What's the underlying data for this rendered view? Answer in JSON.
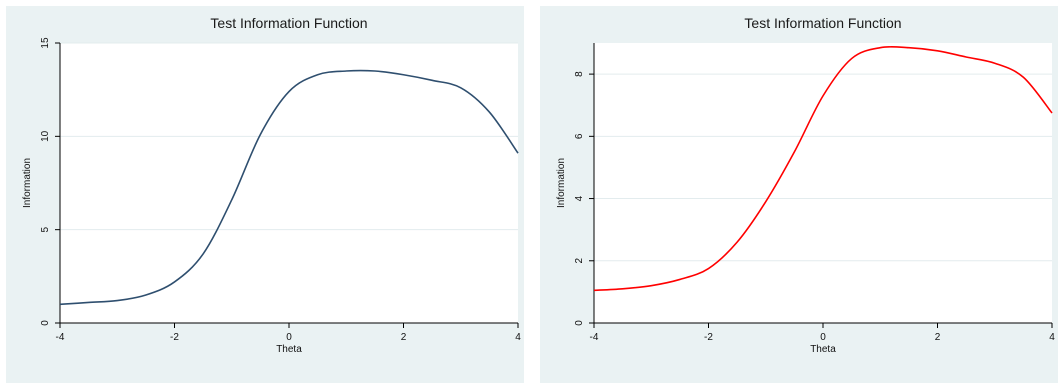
{
  "chart_data": [
    {
      "type": "line",
      "title": "Test Information Function",
      "xlabel": "Theta",
      "ylabel": "Information",
      "xlim": [
        -4,
        4
      ],
      "ylim": [
        0,
        15
      ],
      "xticks": [
        "-4",
        "-2",
        "0",
        "2",
        "4"
      ],
      "yticks": [
        "0",
        "5",
        "10",
        "15"
      ],
      "grid": true,
      "color": "#2f4f6f",
      "series": [
        {
          "x": [
            -4,
            -3.5,
            -3,
            -2.5,
            -2,
            -1.5,
            -1,
            -0.5,
            0,
            0.5,
            1,
            1.5,
            2,
            2.5,
            3,
            3.5,
            4
          ],
          "values": [
            1.0,
            1.1,
            1.2,
            1.5,
            2.2,
            3.7,
            6.6,
            10.1,
            12.4,
            13.3,
            13.5,
            13.5,
            13.3,
            13.0,
            12.6,
            11.3,
            9.1
          ]
        }
      ]
    },
    {
      "type": "line",
      "title": "Test Information Function",
      "xlabel": "Theta",
      "ylabel": "Information",
      "xlim": [
        -4,
        4
      ],
      "ylim": [
        0,
        9
      ],
      "xticks": [
        "-4",
        "-2",
        "0",
        "2",
        "4"
      ],
      "yticks": [
        "0",
        "2",
        "4",
        "6",
        "8"
      ],
      "grid": true,
      "color": "#ff0000",
      "series": [
        {
          "x": [
            -4,
            -3.5,
            -3,
            -2.5,
            -2,
            -1.5,
            -1,
            -0.5,
            0,
            0.5,
            1,
            1.5,
            2,
            2.5,
            3,
            3.5,
            4
          ],
          "values": [
            1.05,
            1.1,
            1.2,
            1.4,
            1.75,
            2.6,
            3.9,
            5.5,
            7.3,
            8.5,
            8.85,
            8.85,
            8.75,
            8.55,
            8.35,
            7.9,
            6.75
          ]
        }
      ]
    }
  ]
}
